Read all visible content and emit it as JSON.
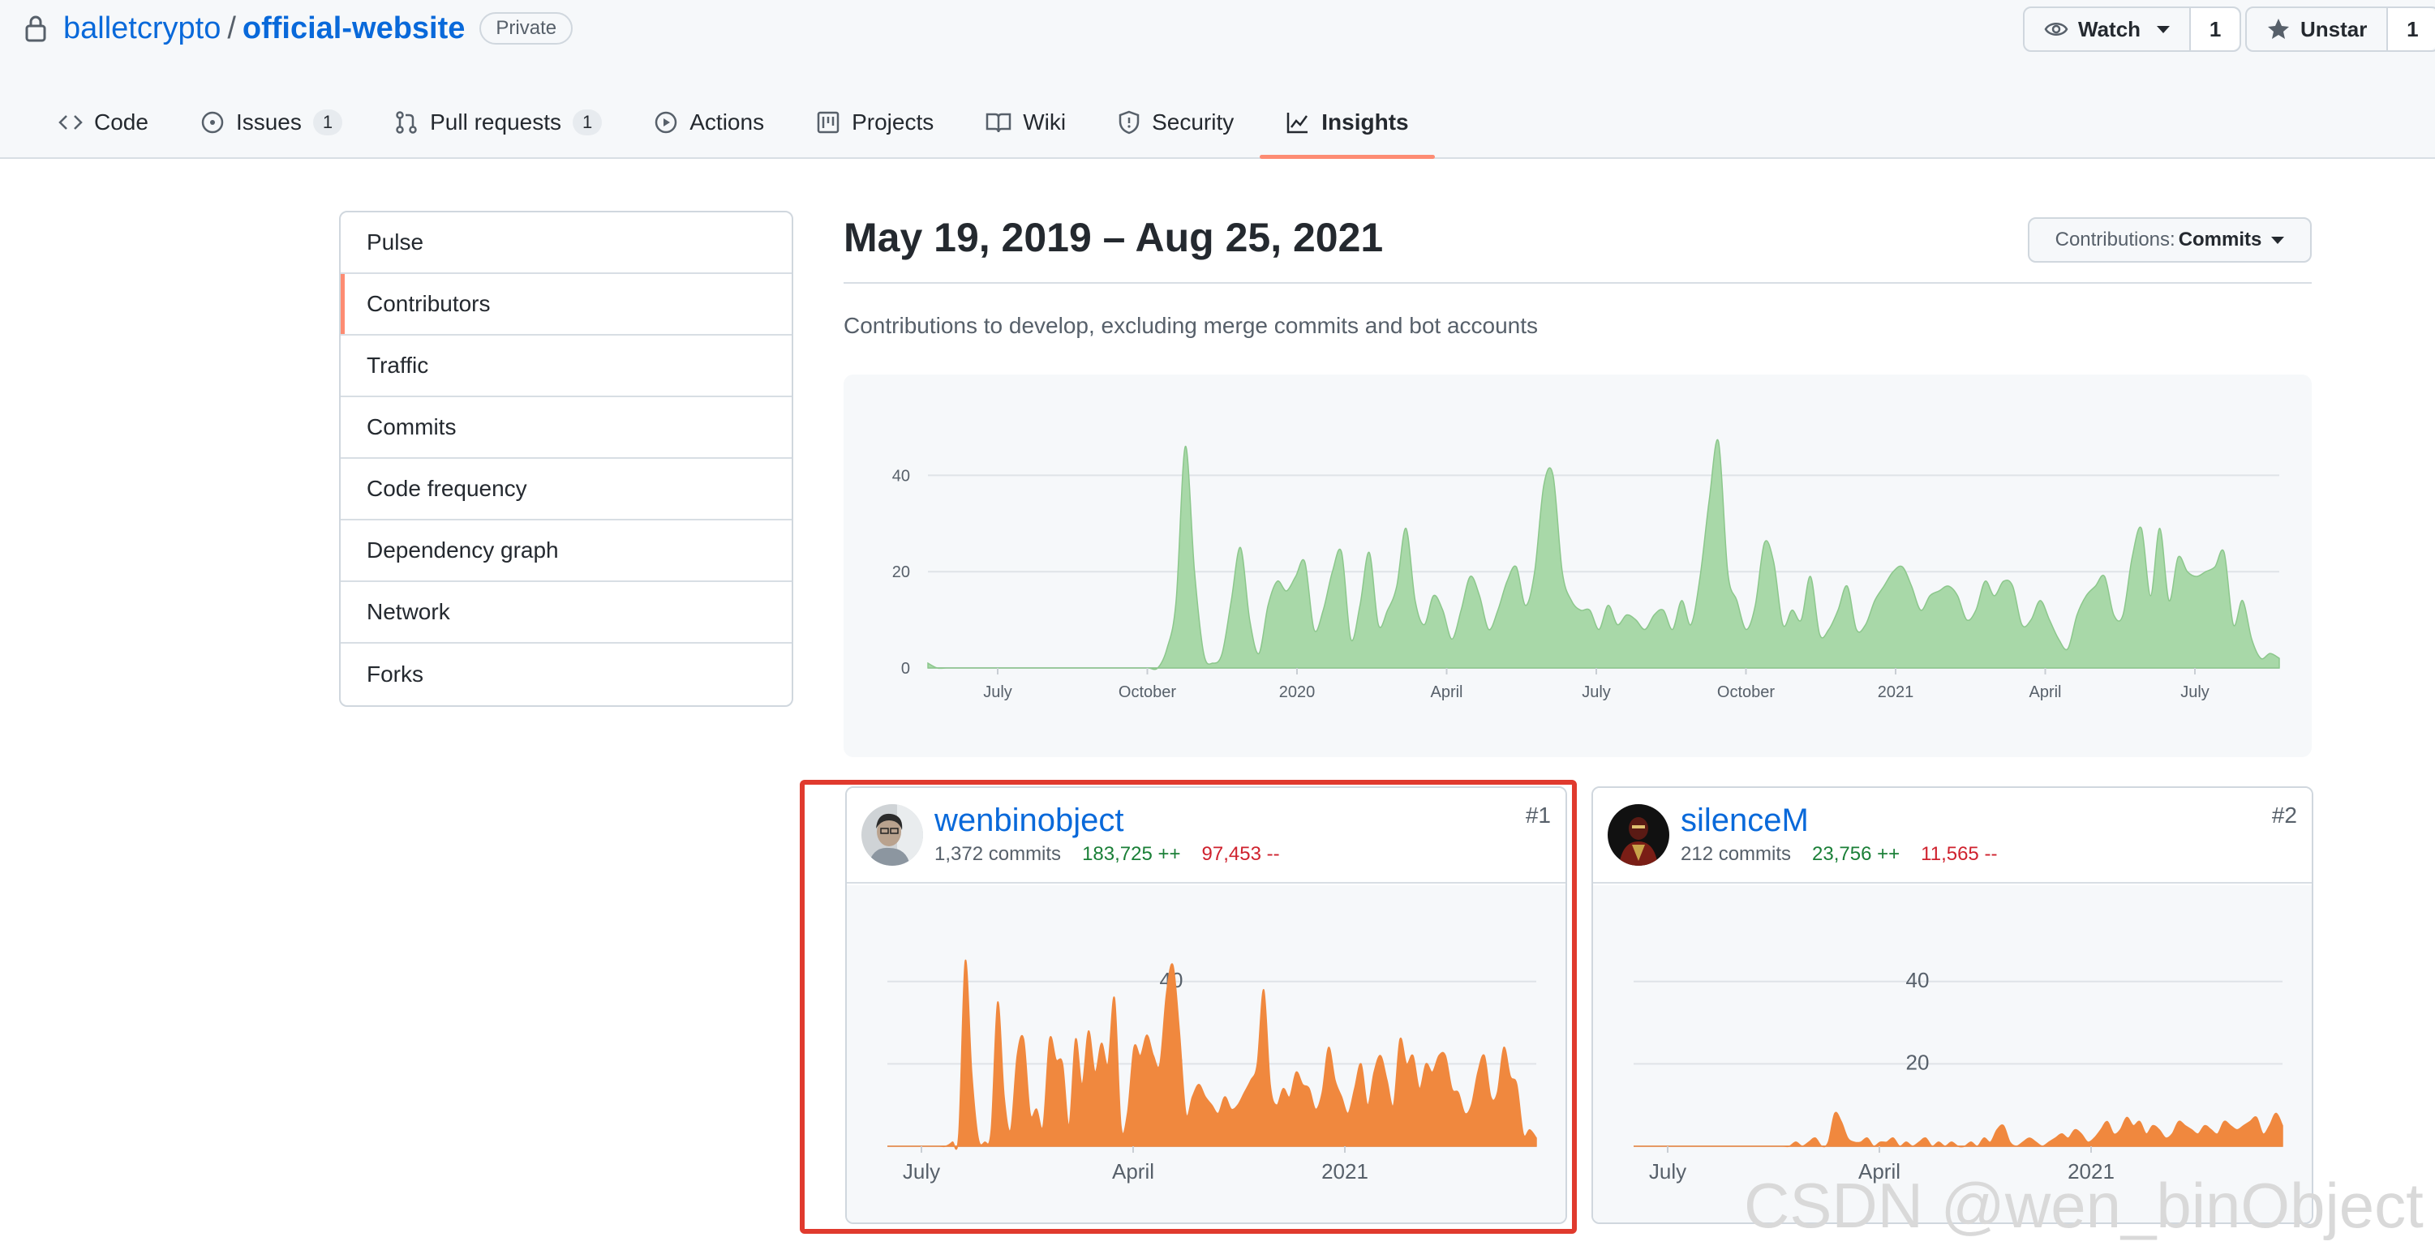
{
  "header": {
    "owner": "balletcrypto",
    "separator": "/",
    "repo": "official-website",
    "visibility": "Private",
    "watch": {
      "label": "Watch",
      "count": "1"
    },
    "star": {
      "label": "Unstar",
      "count": "1"
    }
  },
  "tabs": [
    {
      "label": "Code",
      "icon": "code-icon"
    },
    {
      "label": "Issues",
      "icon": "issue-icon",
      "counter": "1"
    },
    {
      "label": "Pull requests",
      "icon": "pull-request-icon",
      "counter": "1"
    },
    {
      "label": "Actions",
      "icon": "play-icon"
    },
    {
      "label": "Projects",
      "icon": "project-icon"
    },
    {
      "label": "Wiki",
      "icon": "book-icon"
    },
    {
      "label": "Security",
      "icon": "shield-icon"
    },
    {
      "label": "Insights",
      "icon": "graph-icon",
      "active": true
    }
  ],
  "sidebar": {
    "items": [
      {
        "label": "Pulse"
      },
      {
        "label": "Contributors",
        "selected": true
      },
      {
        "label": "Traffic"
      },
      {
        "label": "Commits"
      },
      {
        "label": "Code frequency"
      },
      {
        "label": "Dependency graph"
      },
      {
        "label": "Network"
      },
      {
        "label": "Forks"
      }
    ]
  },
  "main": {
    "date_range": "May 19, 2019 – Aug 25, 2021",
    "contributions_label": "Contributions:",
    "contributions_value": "Commits",
    "subtitle": "Contributions to develop, excluding merge commits and bot accounts"
  },
  "colors": {
    "link": "#0969da",
    "accent_underline": "#fd8c73",
    "main_chart_fill": "#a8d8a8",
    "main_chart_stroke": "#8cc78c",
    "contributor_fill": "#f0883e",
    "additions": "#1a7f37",
    "deletions": "#cf222e",
    "highlight_box": "#e03a2e"
  },
  "contributors": [
    {
      "rank": "#1",
      "username": "wenbinobject",
      "commits": "1,372 commits",
      "additions": "183,725 ++",
      "deletions": "97,453 --"
    },
    {
      "rank": "#2",
      "username": "silenceM",
      "commits": "212 commits",
      "additions": "23,756 ++",
      "deletions": "11,565 --"
    }
  ],
  "watermark": "CSDN @wen_binObject",
  "chart_data": [
    {
      "type": "area",
      "ylim": [
        0,
        50
      ],
      "yticks": [
        "0",
        "20",
        "40"
      ],
      "xticks": [
        "July",
        "October",
        "2020",
        "April",
        "July",
        "October",
        "2021",
        "April",
        "July"
      ],
      "series": [
        {
          "values": [
            1,
            0,
            0,
            0,
            0,
            0,
            0,
            0,
            0,
            0,
            0,
            0,
            0,
            0,
            0,
            0,
            0,
            0,
            0,
            0,
            0,
            0,
            0,
            0,
            0,
            0,
            4,
            14,
            46,
            20,
            3,
            1,
            3,
            14,
            25,
            10,
            3,
            13,
            18,
            16,
            19,
            22,
            8,
            12,
            20,
            24,
            6,
            13,
            24,
            9,
            12,
            17,
            29,
            14,
            9,
            15,
            12,
            6,
            12,
            19,
            15,
            8,
            12,
            18,
            21,
            13,
            20,
            38,
            40,
            20,
            14,
            12,
            12,
            8,
            13,
            9,
            11,
            10,
            8,
            11,
            12,
            8,
            14,
            9,
            19,
            35,
            47,
            20,
            14,
            8,
            13,
            26,
            22,
            9,
            12,
            10,
            19,
            7,
            8,
            12,
            17,
            8,
            9,
            14,
            17,
            20,
            21,
            17,
            12,
            15,
            16,
            17,
            15,
            10,
            12,
            18,
            15,
            18,
            17,
            9,
            10,
            14,
            10,
            6,
            4,
            11,
            15,
            17,
            19,
            11,
            11,
            23,
            29,
            15,
            29,
            14,
            23,
            20,
            19,
            20,
            21,
            24,
            9,
            14,
            6,
            2,
            3,
            2
          ]
        }
      ]
    },
    {
      "type": "area",
      "series_index": 0,
      "ylim": [
        0,
        50
      ],
      "yticks": [
        "20",
        "40"
      ],
      "xticks": [
        "July",
        "April",
        "2021"
      ],
      "series": [
        {
          "values": [
            0,
            0,
            0,
            0,
            0,
            0,
            0,
            0,
            0,
            0,
            1,
            3,
            45,
            18,
            2,
            1,
            4,
            35,
            12,
            4,
            22,
            26,
            8,
            9,
            5,
            26,
            21,
            20,
            5,
            26,
            15,
            28,
            18,
            25,
            20,
            36,
            5,
            8,
            24,
            22,
            27,
            22,
            20,
            37,
            44,
            28,
            8,
            12,
            15,
            12,
            10,
            8,
            12,
            9,
            10,
            13,
            16,
            20,
            38,
            15,
            10,
            14,
            12,
            18,
            15,
            14,
            9,
            13,
            24,
            16,
            12,
            8,
            14,
            20,
            10,
            18,
            22,
            16,
            10,
            26,
            20,
            22,
            14,
            20,
            18,
            22,
            22,
            14,
            13,
            8,
            10,
            18,
            22,
            12,
            13,
            24,
            17,
            15,
            3,
            4,
            2
          ]
        }
      ]
    },
    {
      "type": "area",
      "series_index": 1,
      "ylim": [
        0,
        50
      ],
      "yticks": [
        "20",
        "40"
      ],
      "xticks": [
        "July",
        "April",
        "2021"
      ],
      "series": [
        {
          "values": [
            0,
            0,
            0,
            0,
            0,
            0,
            0,
            0,
            0,
            0,
            0,
            0,
            0,
            0,
            0,
            0,
            0,
            0,
            0,
            0,
            0,
            0,
            0,
            0,
            0,
            1,
            0,
            1,
            2,
            0,
            1,
            8,
            6,
            2,
            1,
            1,
            2,
            0,
            1,
            1,
            2,
            0,
            1,
            0,
            1,
            2,
            0,
            1,
            0,
            1,
            0,
            0,
            1,
            0,
            2,
            1,
            4,
            5,
            1,
            0,
            1,
            2,
            1,
            0,
            1,
            2,
            3,
            2,
            4,
            3,
            1,
            2,
            4,
            6,
            3,
            4,
            7,
            5,
            6,
            3,
            5,
            4,
            2,
            3,
            6,
            5,
            4,
            3,
            5,
            4,
            3,
            6,
            5,
            4,
            5,
            6,
            7,
            3,
            5,
            8,
            5
          ]
        }
      ]
    }
  ]
}
